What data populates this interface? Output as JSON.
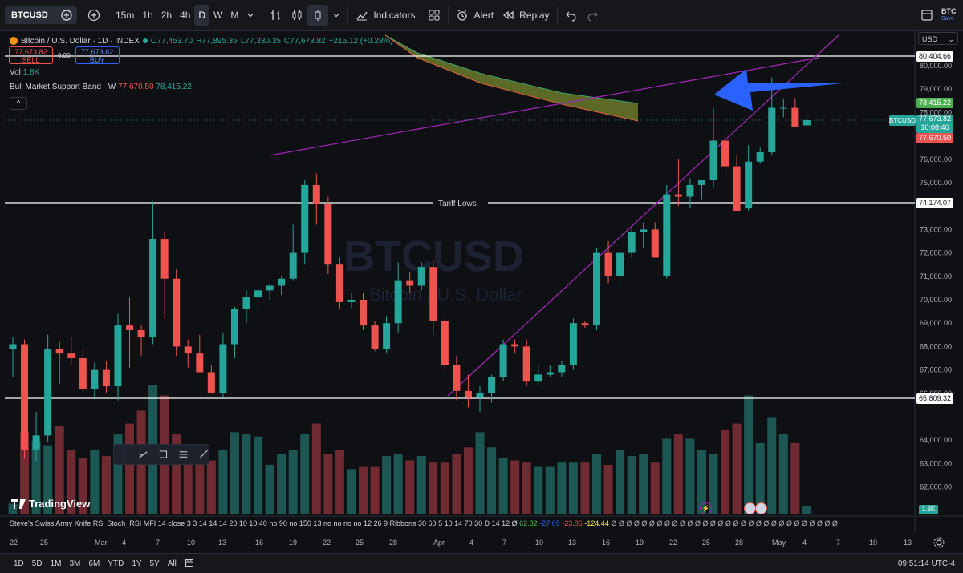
{
  "topbar": {
    "symbol": "BTCUSD",
    "timeframes": [
      "15m",
      "1h",
      "2h",
      "4h",
      "D",
      "W",
      "M"
    ],
    "active_timeframe": "D",
    "indicators_label": "Indicators",
    "alert_label": "Alert",
    "replay_label": "Replay",
    "right_label": "BTC",
    "right_sub": "Save"
  },
  "legend": {
    "title": "Bitcoin / U.S. Dollar · 1D · INDEX",
    "open": "O77,453.70",
    "high": "H77,895.35",
    "low": "L77,330.35",
    "close": "C77,673.82",
    "change": "+215.12 (+0.28%)",
    "sell_price": "77,673.82",
    "sell_label": "SELL",
    "spread": "0.00",
    "buy_price": "77,673.82",
    "buy_label": "BUY",
    "vol_label": "Vol",
    "vol_value": "1.8K",
    "band_label": "Bull Market Support Band · W",
    "band_value1": "77,670.50",
    "band_value2": "78,415.22"
  },
  "currency": "USD",
  "annotation": "Tariff Lows",
  "watermark": {
    "symbol": "BTCUSD",
    "name": "Bitcoin / U.S. Dollar"
  },
  "price_axis": [
    "80,000.00",
    "79,000.00",
    "78,000.00",
    "76,000.00",
    "75,000.00",
    "73,000.00",
    "72,000.00",
    "71,000.00",
    "70,000.00",
    "69,000.00",
    "68,000.00",
    "67,000.00",
    "66,000.00",
    "64,000.00",
    "63,000.00",
    "62,000.00"
  ],
  "price_tags": {
    "top_line": "80,404.66",
    "band_upper": "78,415.22",
    "symbol": "BTCUSD",
    "current": "77,673.82",
    "countdown": "10:08:46",
    "band_lower": "77,670.50",
    "tariff": "74,174.07",
    "bottom_line": "65,809.32",
    "vol": "1.8K"
  },
  "indicator_text": "Steve's Swiss Army Knife RSI Stoch_RSI MFI 14 close 3 3 14 14 14 20 10 10 40 no 90 no 150 13 no no no no 12 26 9 Ribbons 30 60 5 10 14 70 30 D 14 12 Ø",
  "indicator_values": {
    "v1": "62.82",
    "v2": "-27.09",
    "v3": "-23.86",
    "v4": "-124.44"
  },
  "date_axis": [
    "22",
    "25",
    "Mar",
    "4",
    "7",
    "10",
    "13",
    "16",
    "19",
    "22",
    "25",
    "28",
    "Apr",
    "4",
    "7",
    "10",
    "13",
    "16",
    "19",
    "22",
    "25",
    "28",
    "May",
    "4",
    "7",
    "10",
    "13"
  ],
  "ranges": [
    "1D",
    "5D",
    "1M",
    "3M",
    "6M",
    "YTD",
    "1Y",
    "5Y",
    "All"
  ],
  "clock": "09:51:14 UTC-4",
  "brand": "TradingView",
  "chart_data": {
    "type": "candlestick",
    "candles": [
      {
        "o": 67900,
        "h": 68400,
        "l": 66700,
        "c": 68100
      },
      {
        "o": 68100,
        "h": 68300,
        "l": 63200,
        "c": 63600
      },
      {
        "o": 63600,
        "h": 65200,
        "l": 63100,
        "c": 64200
      },
      {
        "o": 64200,
        "h": 68500,
        "l": 63900,
        "c": 67900
      },
      {
        "o": 67900,
        "h": 68200,
        "l": 66400,
        "c": 67700
      },
      {
        "o": 67700,
        "h": 68400,
        "l": 67200,
        "c": 67500
      },
      {
        "o": 67500,
        "h": 67900,
        "l": 66100,
        "c": 66200
      },
      {
        "o": 66200,
        "h": 67300,
        "l": 65800,
        "c": 67000
      },
      {
        "o": 67000,
        "h": 67400,
        "l": 66000,
        "c": 66300
      },
      {
        "o": 66300,
        "h": 69400,
        "l": 65700,
        "c": 68900
      },
      {
        "o": 68900,
        "h": 70100,
        "l": 67100,
        "c": 68700
      },
      {
        "o": 68700,
        "h": 68900,
        "l": 67600,
        "c": 68400
      },
      {
        "o": 68400,
        "h": 74200,
        "l": 68100,
        "c": 72600
      },
      {
        "o": 72600,
        "h": 72900,
        "l": 69200,
        "c": 70900
      },
      {
        "o": 70900,
        "h": 71300,
        "l": 67600,
        "c": 68000
      },
      {
        "o": 68000,
        "h": 68300,
        "l": 67100,
        "c": 67700
      },
      {
        "o": 67700,
        "h": 68500,
        "l": 66900,
        "c": 66900
      },
      {
        "o": 66900,
        "h": 67200,
        "l": 66000,
        "c": 66000
      },
      {
        "o": 66000,
        "h": 68600,
        "l": 65800,
        "c": 68100
      },
      {
        "o": 68100,
        "h": 69700,
        "l": 67500,
        "c": 69600
      },
      {
        "o": 69600,
        "h": 70400,
        "l": 69000,
        "c": 70100
      },
      {
        "o": 70100,
        "h": 70600,
        "l": 69500,
        "c": 70400
      },
      {
        "o": 70400,
        "h": 70700,
        "l": 70000,
        "c": 70600
      },
      {
        "o": 70600,
        "h": 71000,
        "l": 70200,
        "c": 70900
      },
      {
        "o": 70900,
        "h": 73200,
        "l": 70800,
        "c": 72000
      },
      {
        "o": 72000,
        "h": 75100,
        "l": 71500,
        "c": 74900
      },
      {
        "o": 74900,
        "h": 75400,
        "l": 73200,
        "c": 74100
      },
      {
        "o": 74100,
        "h": 74400,
        "l": 71100,
        "c": 71500
      },
      {
        "o": 71500,
        "h": 71800,
        "l": 69600,
        "c": 69900
      },
      {
        "o": 69900,
        "h": 70300,
        "l": 69600,
        "c": 70000
      },
      {
        "o": 70000,
        "h": 70300,
        "l": 68700,
        "c": 68900
      },
      {
        "o": 68900,
        "h": 69100,
        "l": 67800,
        "c": 67900
      },
      {
        "o": 67900,
        "h": 69300,
        "l": 67700,
        "c": 69000
      },
      {
        "o": 69000,
        "h": 71600,
        "l": 68600,
        "c": 70800
      },
      {
        "o": 70800,
        "h": 71200,
        "l": 70300,
        "c": 70600
      },
      {
        "o": 70600,
        "h": 71600,
        "l": 70400,
        "c": 71400
      },
      {
        "o": 71400,
        "h": 71700,
        "l": 68500,
        "c": 69100
      },
      {
        "o": 69100,
        "h": 69300,
        "l": 66900,
        "c": 67200
      },
      {
        "o": 67200,
        "h": 67600,
        "l": 65700,
        "c": 66100
      },
      {
        "o": 66100,
        "h": 66800,
        "l": 65400,
        "c": 65800
      },
      {
        "o": 65800,
        "h": 66300,
        "l": 65200,
        "c": 66000
      },
      {
        "o": 66000,
        "h": 66800,
        "l": 65600,
        "c": 66700
      },
      {
        "o": 66700,
        "h": 68300,
        "l": 66500,
        "c": 68100
      },
      {
        "o": 68100,
        "h": 68300,
        "l": 67700,
        "c": 68000
      },
      {
        "o": 68000,
        "h": 68300,
        "l": 66300,
        "c": 66500
      },
      {
        "o": 66500,
        "h": 67200,
        "l": 66300,
        "c": 66800
      },
      {
        "o": 66800,
        "h": 67200,
        "l": 66700,
        "c": 66900
      },
      {
        "o": 66900,
        "h": 67400,
        "l": 66700,
        "c": 67200
      },
      {
        "o": 67200,
        "h": 69200,
        "l": 67000,
        "c": 69000
      },
      {
        "o": 69000,
        "h": 69100,
        "l": 68800,
        "c": 68900
      },
      {
        "o": 68900,
        "h": 72200,
        "l": 68700,
        "c": 72000
      },
      {
        "o": 72000,
        "h": 72500,
        "l": 70700,
        "c": 71000
      },
      {
        "o": 71000,
        "h": 72100,
        "l": 70600,
        "c": 72000
      },
      {
        "o": 72000,
        "h": 73100,
        "l": 71800,
        "c": 72900
      },
      {
        "o": 72900,
        "h": 73300,
        "l": 72200,
        "c": 73000
      },
      {
        "o": 73000,
        "h": 73300,
        "l": 71800,
        "c": 71800
      },
      {
        "o": 71000,
        "h": 74900,
        "l": 70900,
        "c": 74500
      },
      {
        "o": 74500,
        "h": 76000,
        "l": 74000,
        "c": 74400
      },
      {
        "o": 74400,
        "h": 75200,
        "l": 73900,
        "c": 74900
      },
      {
        "o": 74900,
        "h": 75100,
        "l": 74300,
        "c": 75100
      },
      {
        "o": 75100,
        "h": 78200,
        "l": 74800,
        "c": 76800
      },
      {
        "o": 76800,
        "h": 77300,
        "l": 75200,
        "c": 75700
      },
      {
        "o": 75700,
        "h": 76200,
        "l": 73800,
        "c": 73800
      },
      {
        "o": 73900,
        "h": 76600,
        "l": 73800,
        "c": 75900
      },
      {
        "o": 75900,
        "h": 76500,
        "l": 75800,
        "c": 76300
      },
      {
        "o": 76300,
        "h": 79500,
        "l": 76200,
        "c": 78200
      },
      {
        "o": 78200,
        "h": 78600,
        "l": 77800,
        "c": 78200
      },
      {
        "o": 78200,
        "h": 78600,
        "l": 77400,
        "c": 77400
      },
      {
        "o": 77450,
        "h": 77900,
        "l": 77330,
        "c": 77670
      }
    ],
    "volumes": [
      0.05,
      0.38,
      0.34,
      0.32,
      0.41,
      0.3,
      0.26,
      0.3,
      0.27,
      0.37,
      0.42,
      0.48,
      0.6,
      0.55,
      0.37,
      0.3,
      0.26,
      0.25,
      0.3,
      0.38,
      0.37,
      0.36,
      0.23,
      0.28,
      0.3,
      0.37,
      0.42,
      0.28,
      0.3,
      0.21,
      0.22,
      0.22,
      0.27,
      0.28,
      0.25,
      0.27,
      0.24,
      0.24,
      0.28,
      0.31,
      0.38,
      0.31,
      0.26,
      0.25,
      0.24,
      0.22,
      0.22,
      0.24,
      0.24,
      0.24,
      0.28,
      0.23,
      0.3,
      0.27,
      0.28,
      0.24,
      0.35,
      0.37,
      0.35,
      0.3,
      0.28,
      0.39,
      0.42,
      0.55,
      0.33,
      0.45,
      0.37,
      0.33,
      0.04
    ]
  }
}
